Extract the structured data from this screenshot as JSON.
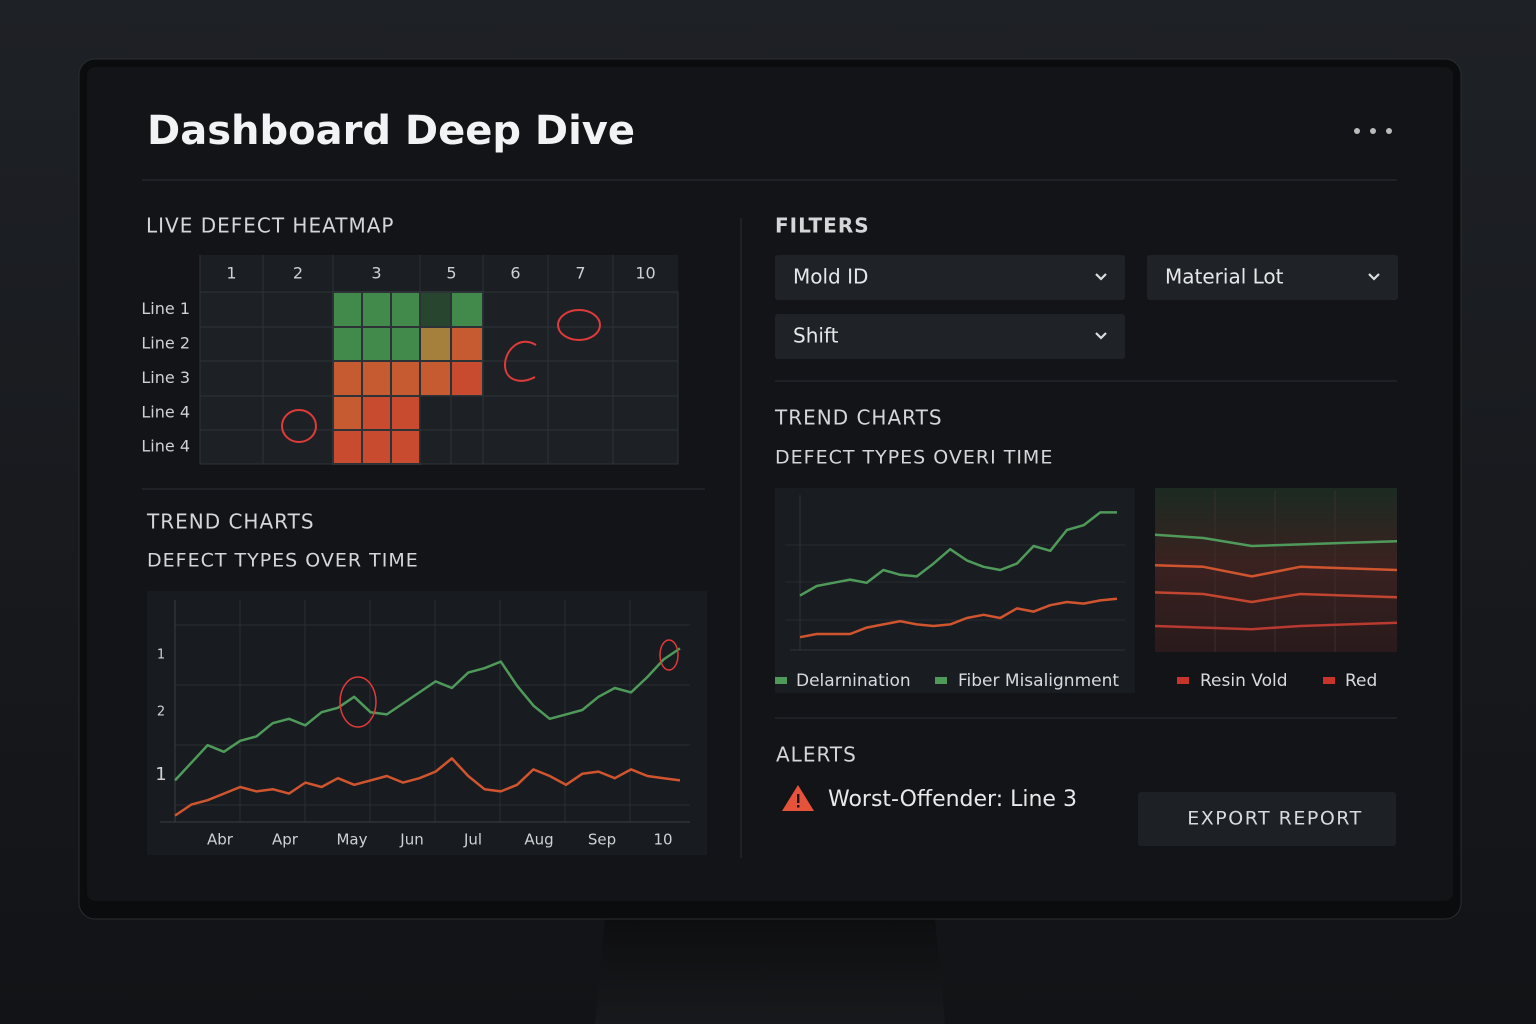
{
  "header": {
    "title": "Dashboard Deep Dive"
  },
  "heatmap": {
    "title": "LIVE DEFECT HEATMAP",
    "columns": [
      "1",
      "2",
      "3",
      "5",
      "6",
      "7",
      "10"
    ],
    "rows": [
      "Line 1",
      "Line 2",
      "Line 3",
      "Line 4",
      "Line 4"
    ],
    "values": [
      [
        0,
        0,
        2,
        2,
        2,
        1,
        2,
        0,
        0,
        0
      ],
      [
        0,
        0,
        2,
        2,
        2,
        5,
        7,
        0,
        0,
        0
      ],
      [
        0,
        0,
        7,
        7,
        7,
        7,
        8,
        0,
        0,
        0
      ],
      [
        0,
        0,
        7,
        8,
        8,
        0,
        0,
        0,
        0,
        0
      ],
      [
        0,
        0,
        8,
        8,
        8,
        0,
        0,
        0,
        0,
        0
      ]
    ],
    "level_colors": {
      "1": "#27452f",
      "2": "#418a4b",
      "5": "#a5803c",
      "7": "#c65a30",
      "8": "#c84b30"
    }
  },
  "left_trend": {
    "title": "TREND CHARTS",
    "subtitle": "DEFECT TYPES OVER TIME",
    "x_labels": [
      "Abr",
      "Apr",
      "May",
      "Jun",
      "Jul",
      "Aug",
      "Sep",
      "10"
    ],
    "y_labels": [
      "1",
      "2",
      "1"
    ],
    "ylim": [
      0,
      10
    ],
    "series": [
      {
        "color": "#4f9a5a",
        "values": [
          1.8,
          2.6,
          3.4,
          3.1,
          3.6,
          3.8,
          4.4,
          4.6,
          4.3,
          4.9,
          5.1,
          5.6,
          4.9,
          4.8,
          5.3,
          5.8,
          6.3,
          6.0,
          6.7,
          6.9,
          7.2,
          6.1,
          5.2,
          4.6,
          4.8,
          5.0,
          5.6,
          6.0,
          5.8,
          6.5,
          7.3,
          7.8
        ]
      },
      {
        "color": "#d0552f",
        "values": [
          0.2,
          0.7,
          0.9,
          1.2,
          1.5,
          1.3,
          1.4,
          1.2,
          1.7,
          1.5,
          1.9,
          1.6,
          1.8,
          2.0,
          1.7,
          1.9,
          2.2,
          2.8,
          2.0,
          1.4,
          1.3,
          1.6,
          2.3,
          2.0,
          1.6,
          2.1,
          2.2,
          1.9,
          2.3,
          2.0,
          1.9,
          1.8
        ]
      }
    ]
  },
  "filters": {
    "title": "FILTERS",
    "dropdowns": [
      "Mold ID",
      "Material Lot",
      "Shift"
    ]
  },
  "right_trend": {
    "title": "TREND CHARTS",
    "subtitle": "DEFECT TYPES OVERI TIME",
    "chart1": {
      "ylim": [
        0,
        10
      ],
      "series": [
        {
          "color": "#4f9a5a",
          "values": [
            3.4,
            4.0,
            4.2,
            4.4,
            4.2,
            5.0,
            4.7,
            4.6,
            5.4,
            6.3,
            5.6,
            5.2,
            5.0,
            5.4,
            6.5,
            6.2,
            7.5,
            7.8,
            8.6,
            8.6
          ]
        },
        {
          "color": "#d0552f",
          "values": [
            0.8,
            1.0,
            1.0,
            1.0,
            1.4,
            1.6,
            1.8,
            1.6,
            1.5,
            1.6,
            2.0,
            2.2,
            2.0,
            2.6,
            2.4,
            2.8,
            3.0,
            2.9,
            3.1,
            3.2
          ]
        }
      ],
      "legend": [
        {
          "label": "Delarnination",
          "color": "#4f9a5a"
        },
        {
          "label": "Fiber Misalignment",
          "color": "#4f9a5a"
        }
      ]
    },
    "chart2": {
      "ylim": [
        0,
        10
      ],
      "series": [
        {
          "color": "#4f9a5a",
          "values": [
            7.2,
            7.0,
            6.5,
            6.6,
            6.7,
            6.8
          ]
        },
        {
          "color": "#d0552f",
          "values": [
            5.3,
            5.2,
            4.6,
            5.2,
            5.1,
            5.0
          ]
        },
        {
          "color": "#c2452f",
          "values": [
            3.6,
            3.5,
            3.0,
            3.5,
            3.4,
            3.3
          ]
        },
        {
          "color": "#b83a30",
          "values": [
            1.5,
            1.4,
            1.3,
            1.5,
            1.6,
            1.7
          ]
        }
      ],
      "legend": [
        {
          "label": "Resin Vold",
          "color": "#c8342c"
        },
        {
          "label": "Red",
          "color": "#c8342c"
        }
      ]
    }
  },
  "alerts": {
    "title": "ALERTS",
    "message": "Worst-Offender: Line 3"
  },
  "actions": {
    "export": "EXPORT REPORT"
  }
}
